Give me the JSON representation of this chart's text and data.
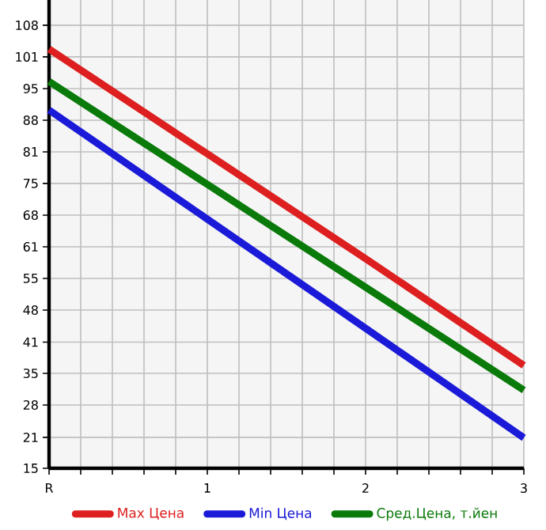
{
  "chart_data": {
    "type": "line",
    "x": [
      0,
      1,
      2,
      3
    ],
    "xlim": [
      0,
      3
    ],
    "xticks": [
      {
        "value": 0,
        "label": "R"
      },
      {
        "value": 0.2,
        "label": null
      },
      {
        "value": 0.4,
        "label": null
      },
      {
        "value": 0.6,
        "label": null
      },
      {
        "value": 0.8,
        "label": null
      },
      {
        "value": 1,
        "label": "1"
      },
      {
        "value": 1.2,
        "label": null
      },
      {
        "value": 1.4,
        "label": null
      },
      {
        "value": 1.6,
        "label": null
      },
      {
        "value": 1.8,
        "label": null
      },
      {
        "value": 2,
        "label": "2"
      },
      {
        "value": 2.2,
        "label": null
      },
      {
        "value": 2.4,
        "label": null
      },
      {
        "value": 2.6,
        "label": null
      },
      {
        "value": 2.8,
        "label": null
      },
      {
        "value": 3,
        "label": "3"
      }
    ],
    "ylim": [
      15,
      113.3
    ],
    "yticks": [
      15,
      {
        "value": 21.49,
        "label": "21"
      },
      {
        "value": 28.29,
        "label": "28"
      },
      {
        "value": 34.93,
        "label": "35"
      },
      {
        "value": 41.49,
        "label": "41"
      },
      {
        "value": 48.21,
        "label": "48"
      },
      {
        "value": 54.86,
        "label": "55"
      },
      {
        "value": 61.5,
        "label": "61"
      },
      {
        "value": 68.14,
        "label": "68"
      },
      {
        "value": 74.79,
        "label": "75"
      },
      {
        "value": 81.43,
        "label": "81"
      },
      {
        "value": 88.07,
        "label": "88"
      },
      {
        "value": 94.71,
        "label": "95"
      },
      {
        "value": 101.36,
        "label": "101"
      },
      108
    ],
    "grid": true,
    "legend": "bottom",
    "marker": "none",
    "line_style": "solid",
    "series": [
      {
        "name": "Max Цена",
        "color": "#dd1f1f",
        "values": [
          103,
          81,
          59,
          36.6
        ]
      },
      {
        "name": "Min Цена",
        "color": "#1a1ad8",
        "values": [
          90.2,
          67.3,
          44.4,
          21.4
        ]
      },
      {
        "name": "Сред.Цена, т.йен",
        "color": "#0a7a0a",
        "values": [
          96.2,
          74.6,
          53,
          31.4
        ]
      }
    ]
  }
}
